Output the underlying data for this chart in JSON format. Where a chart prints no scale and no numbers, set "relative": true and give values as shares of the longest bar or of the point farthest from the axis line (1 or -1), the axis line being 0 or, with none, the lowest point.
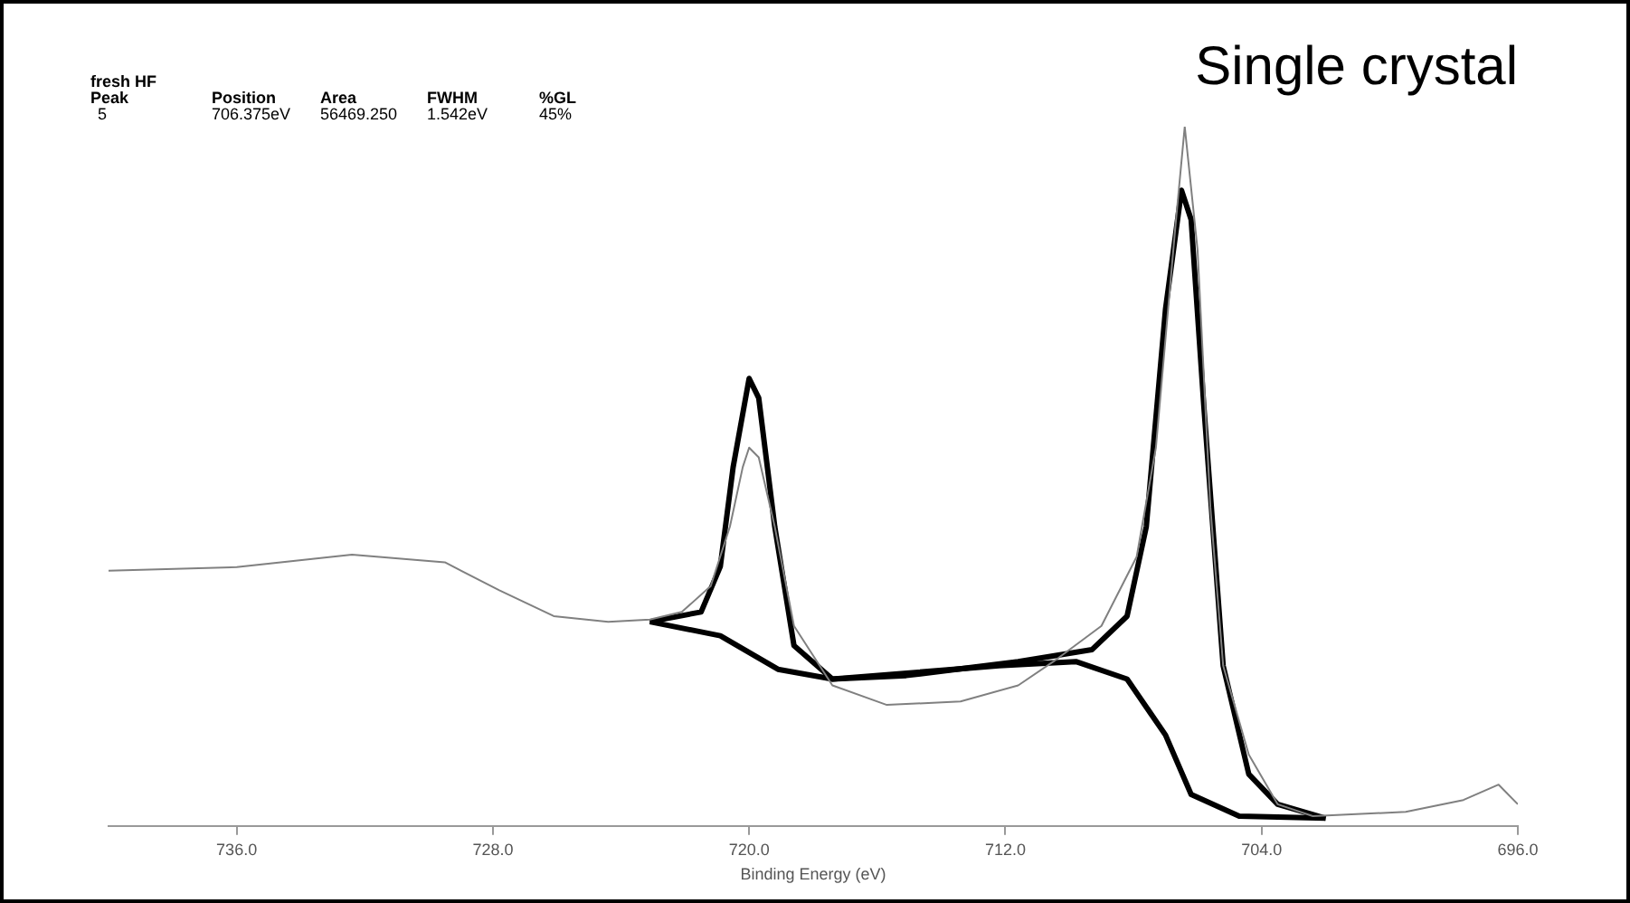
{
  "chart_data": {
    "type": "line",
    "title": "Single crystal",
    "xlabel": "Binding Energy (eV)",
    "relative": true,
    "marker": "none",
    "annotations": [
      "fresh HF",
      "Peak",
      "Position",
      "Area",
      "FWHM",
      "%GL",
      "5",
      "706.375eV",
      "56469.250",
      "1.542eV",
      "45%"
    ],
    "xlim": [
      740,
      696
    ],
    "xticks": [
      {
        "value": 736,
        "label": "736.0"
      },
      {
        "value": 728,
        "label": "728.0"
      },
      {
        "value": 720,
        "label": "720.0"
      },
      {
        "value": 712,
        "label": "712.0"
      },
      {
        "value": 704,
        "label": "704.0"
      },
      {
        "value": 696,
        "label": "696.0"
      }
    ],
    "series": [
      {
        "color": "#808080",
        "x": [
          740,
          736,
          732.4,
          729.5,
          727.8,
          726.1,
          724.4,
          723.1,
          722.1,
          721.2,
          720.6,
          720.2,
          720,
          719.7,
          719.2,
          718.6,
          717.4,
          715.7,
          713.4,
          711.6,
          710.5,
          709,
          707.9,
          707.3,
          706.7,
          706.4,
          706,
          705.6,
          705.2,
          704.4,
          703.5,
          702.4,
          699.5,
          697.7,
          696.6,
          696
        ],
        "values": [
          0.365,
          0.37,
          0.388,
          0.377,
          0.337,
          0.3,
          0.292,
          0.295,
          0.306,
          0.343,
          0.428,
          0.513,
          0.541,
          0.527,
          0.428,
          0.286,
          0.201,
          0.173,
          0.178,
          0.201,
          0.235,
          0.286,
          0.385,
          0.541,
          0.853,
          1,
          0.824,
          0.456,
          0.229,
          0.102,
          0.031,
          0.014,
          0.02,
          0.037,
          0.059,
          0.031
        ]
      },
      {
        "color": "#000000",
        "x": [
          723.1,
          721.5,
          720.9,
          720.5,
          720,
          719.7,
          719.2,
          718.6,
          717.4,
          715.1,
          711.6,
          709.3,
          708.2,
          707.6,
          707,
          706.5,
          706.2,
          705.8,
          705.2,
          704.4,
          703.5,
          702
        ],
        "values": [
          0.292,
          0.306,
          0.371,
          0.513,
          0.64,
          0.612,
          0.428,
          0.258,
          0.21,
          0.215,
          0.235,
          0.252,
          0.3,
          0.428,
          0.739,
          0.909,
          0.867,
          0.598,
          0.229,
          0.074,
          0.031,
          0.011
        ]
      },
      {
        "color": "#000000",
        "x": [
          723.1,
          720.9,
          719.1,
          717.4,
          712.2,
          709.8,
          708.2,
          707,
          706.2,
          704.7,
          702
        ],
        "values": [
          0.292,
          0.272,
          0.224,
          0.21,
          0.229,
          0.235,
          0.21,
          0.13,
          0.045,
          0.014,
          0.011
        ]
      }
    ]
  }
}
